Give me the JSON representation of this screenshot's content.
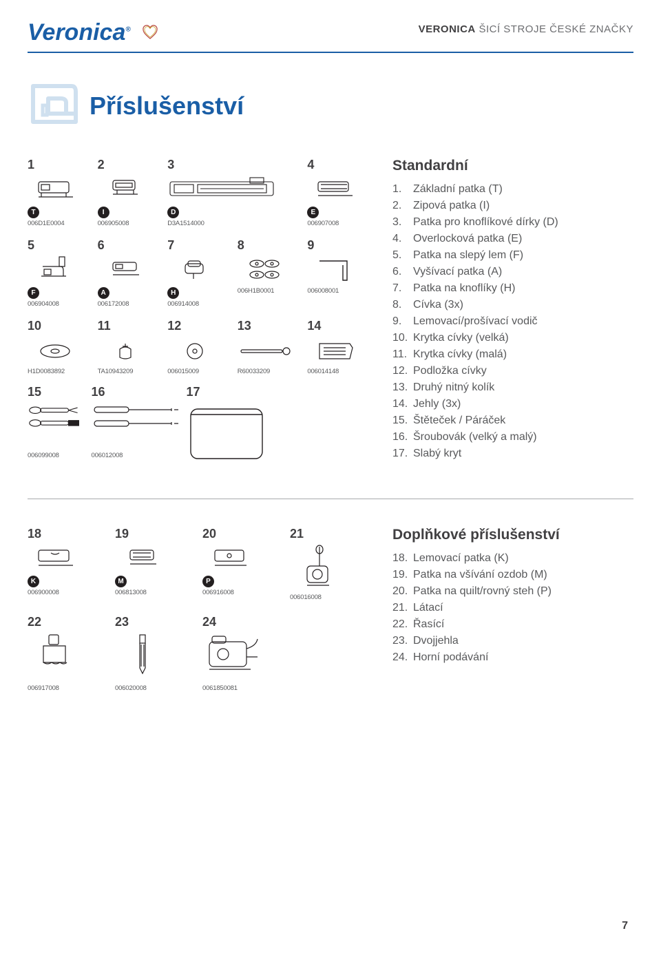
{
  "brand": {
    "logo": "Veronica",
    "tagline_bold": "VERONICA",
    "tagline_rest": " ŠICÍ STROJE ČESKÉ ZNAČKY"
  },
  "title": "Příslušenství",
  "colors": {
    "blue": "#1a5ea6",
    "gray": "#58595b",
    "dark": "#414042",
    "black": "#231f20",
    "hr": "#a7a9ac",
    "yellow": "#c9a227",
    "red": "#b8443c"
  },
  "page_number": "7",
  "row1": [
    {
      "num": "1",
      "badge": "T",
      "code": "006D1E0004"
    },
    {
      "num": "2",
      "badge": "I",
      "code": "006905008"
    },
    {
      "num": "3",
      "badge": "D",
      "code": "D3A1514000"
    },
    {
      "num": "4",
      "badge": "E",
      "code": "006907008"
    }
  ],
  "row2": [
    {
      "num": "5",
      "badge": "F",
      "code": "006904008"
    },
    {
      "num": "6",
      "badge": "A",
      "code": "006172008"
    },
    {
      "num": "7",
      "badge": "H",
      "code": "006914008"
    },
    {
      "num": "8",
      "code": "006H1B0001"
    },
    {
      "num": "9",
      "code": "006008001"
    }
  ],
  "row3": [
    {
      "num": "10",
      "code": "H1D0083892"
    },
    {
      "num": "11",
      "code": "TA10943209"
    },
    {
      "num": "12",
      "code": "006015009"
    },
    {
      "num": "13",
      "code": "R60033209"
    },
    {
      "num": "14",
      "code": "006014148"
    }
  ],
  "row4": [
    {
      "num": "15",
      "code": "006099008"
    },
    {
      "num": "16",
      "code": "006012008"
    },
    {
      "num": "17",
      "code": ""
    }
  ],
  "row5": [
    {
      "num": "18",
      "badge": "K",
      "code": "006900008"
    },
    {
      "num": "19",
      "badge": "M",
      "code": "006813008"
    },
    {
      "num": "20",
      "badge": "P",
      "code": "006916008"
    },
    {
      "num": "21",
      "code": "006016008"
    }
  ],
  "row6": [
    {
      "num": "22",
      "code": "006917008"
    },
    {
      "num": "23",
      "code": "006020008"
    },
    {
      "num": "24",
      "code": "0061850081"
    }
  ],
  "standard": {
    "title": "Standardní",
    "items": [
      {
        "n": "1.",
        "t": "Základní patka (T)"
      },
      {
        "n": "2.",
        "t": "Zipová patka (I)"
      },
      {
        "n": "3.",
        "t": "Patka pro knoflíkové dírky (D)"
      },
      {
        "n": "4.",
        "t": "Overlocková patka (E)"
      },
      {
        "n": "5.",
        "t": "Patka na slepý lem (F)"
      },
      {
        "n": "6.",
        "t": "Vyšívací patka (A)"
      },
      {
        "n": "7.",
        "t": "Patka na knoflíky (H)"
      },
      {
        "n": "8.",
        "t": "Cívka (3x)"
      },
      {
        "n": "9.",
        "t": "Lemovací/prošívací vodič"
      },
      {
        "n": "10.",
        "t": "Krytka cívky (velká)"
      },
      {
        "n": "11.",
        "t": "Krytka cívky (malá)"
      },
      {
        "n": "12.",
        "t": "Podložka cívky"
      },
      {
        "n": "13.",
        "t": "Druhý nitný kolík"
      },
      {
        "n": "14.",
        "t": "Jehly (3x)"
      },
      {
        "n": "15.",
        "t": "Štěteček / Páráček"
      },
      {
        "n": "16.",
        "t": "Šroubovák (velký a malý)"
      },
      {
        "n": "17.",
        "t": "Slabý kryt"
      }
    ]
  },
  "optional": {
    "title": "Doplňkové příslušenství",
    "items": [
      {
        "n": "18.",
        "t": "Lemovací patka (K)"
      },
      {
        "n": "19.",
        "t": "Patka na všívání ozdob (M)"
      },
      {
        "n": "20.",
        "t": "Patka na quilt/rovný steh (P)"
      },
      {
        "n": "21.",
        "t": "Látací"
      },
      {
        "n": "22.",
        "t": "Řasící"
      },
      {
        "n": "23.",
        "t": "Dvojjehla"
      },
      {
        "n": "24.",
        "t": "Horní podávání"
      }
    ]
  }
}
